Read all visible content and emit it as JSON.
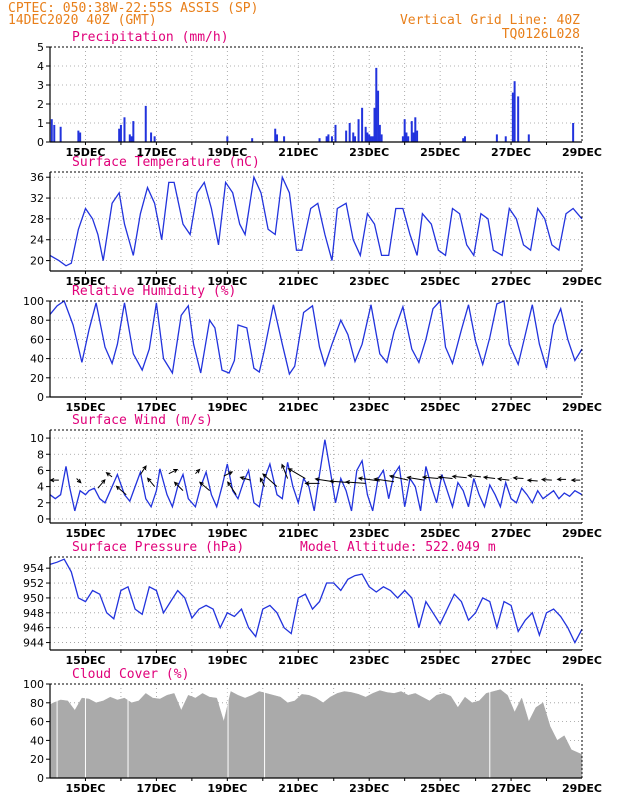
{
  "header": {
    "line1_left": "CPTEC:  050:38W-22:55S  ASSIS (SP)",
    "line2_left": "14DEC2020 40Z (GMT)",
    "line1_right": "Vertical Grid Line: 40Z",
    "line2_right": "TQ0126L028",
    "model_altitude": "Model Altitude: 522.049 m"
  },
  "colors": {
    "header": "#e87f1a",
    "title": "#e0007a",
    "series": "#2233dd",
    "cloud": "#aaaaaa",
    "arrow": "#000000"
  },
  "x_axis": {
    "labels": [
      "15DEC",
      "17DEC",
      "19DEC",
      "21DEC",
      "23DEC",
      "25DEC",
      "27DEC",
      "29DEC"
    ],
    "label_days": [
      1,
      3,
      5,
      7,
      9,
      11,
      13,
      15
    ],
    "grid_days": [
      1,
      2,
      3,
      4,
      5,
      6,
      7,
      8,
      9,
      10,
      11,
      12,
      13,
      14
    ]
  },
  "chart_data": [
    {
      "type": "bar",
      "title": "Precipitation (mm/h)",
      "ylim": [
        0,
        5
      ],
      "yticks": [
        "0",
        "1",
        "2",
        "3",
        "4",
        "5"
      ],
      "xlim_days": [
        0,
        15
      ],
      "x": [
        0.05,
        0.12,
        0.3,
        0.8,
        0.85,
        1.95,
        2.0,
        2.1,
        2.25,
        2.35,
        2.3,
        2.7,
        2.85,
        2.95,
        5.0,
        5.7,
        6.35,
        6.4,
        6.6,
        7.6,
        7.8,
        7.85,
        7.95,
        8.05,
        8.35,
        8.45,
        8.55,
        8.6,
        8.7,
        8.8,
        8.9,
        8.95,
        9.0,
        9.05,
        9.1,
        9.15,
        9.2,
        9.25,
        9.3,
        9.35,
        9.95,
        10.0,
        10.05,
        10.1,
        10.2,
        10.25,
        10.3,
        10.35,
        11.65,
        11.7,
        12.6,
        12.85,
        13.05,
        13.1,
        13.2,
        13.5,
        14.75
      ],
      "values": [
        1.2,
        0.9,
        0.8,
        0.6,
        0.5,
        0.7,
        0.9,
        1.3,
        0.4,
        1.1,
        0.3,
        1.9,
        0.5,
        0.3,
        0.3,
        0.2,
        0.7,
        0.4,
        0.3,
        0.2,
        0.3,
        0.4,
        0.3,
        0.9,
        0.6,
        1.0,
        0.5,
        0.3,
        1.2,
        1.8,
        0.8,
        0.5,
        0.4,
        0.3,
        0.3,
        1.8,
        3.9,
        2.7,
        0.9,
        0.4,
        0.3,
        1.2,
        0.5,
        0.3,
        1.1,
        0.5,
        1.3,
        0.6,
        0.2,
        0.3,
        0.4,
        0.3,
        2.6,
        3.2,
        2.4,
        0.4,
        1.0
      ]
    },
    {
      "type": "line",
      "title": "Surface Temperature (nC)",
      "ylim": [
        18,
        37
      ],
      "yticks": [
        "20",
        "24",
        "28",
        "32",
        "36"
      ],
      "ytick_values": [
        20,
        24,
        28,
        32,
        36
      ],
      "x": [
        0.0,
        0.25,
        0.45,
        0.6,
        0.8,
        1.0,
        1.2,
        1.35,
        1.5,
        1.75,
        1.95,
        2.1,
        2.35,
        2.55,
        2.75,
        2.95,
        3.15,
        3.35,
        3.5,
        3.75,
        3.95,
        4.15,
        4.35,
        4.55,
        4.75,
        4.95,
        5.15,
        5.35,
        5.5,
        5.75,
        5.95,
        6.15,
        6.35,
        6.55,
        6.75,
        6.95,
        7.1,
        7.35,
        7.55,
        7.75,
        7.95,
        8.1,
        8.35,
        8.55,
        8.75,
        8.95,
        9.15,
        9.35,
        9.55,
        9.75,
        9.95,
        10.15,
        10.35,
        10.5,
        10.75,
        10.95,
        11.15,
        11.35,
        11.55,
        11.75,
        11.95,
        12.15,
        12.35,
        12.5,
        12.75,
        12.95,
        13.15,
        13.35,
        13.55,
        13.75,
        13.95,
        14.15,
        14.35,
        14.55,
        14.75,
        15.0
      ],
      "values": [
        21,
        20,
        19,
        19.5,
        26,
        30,
        28,
        25,
        20,
        31,
        33,
        27,
        21,
        29,
        34,
        31,
        24,
        35,
        35,
        27,
        25,
        33,
        35,
        30,
        23,
        35,
        33,
        27,
        25,
        36,
        33,
        26,
        25,
        36,
        33,
        22,
        22,
        30,
        31,
        25,
        20,
        30,
        31,
        24,
        21,
        29,
        27,
        21,
        21,
        30,
        30,
        25,
        21,
        29,
        27,
        22,
        21,
        30,
        29,
        23,
        21,
        29,
        28,
        22,
        21,
        30,
        28,
        23,
        22,
        30,
        28,
        23,
        22,
        29,
        30,
        28
      ]
    },
    {
      "type": "line",
      "title": "Relative Humidity (%)",
      "ylim": [
        0,
        100
      ],
      "yticks": [
        "0",
        "20",
        "40",
        "60",
        "80",
        "100"
      ],
      "ytick_values": [
        0,
        20,
        40,
        60,
        80,
        100
      ],
      "x": [
        0.0,
        0.2,
        0.4,
        0.65,
        0.9,
        1.1,
        1.3,
        1.55,
        1.75,
        1.9,
        2.1,
        2.35,
        2.6,
        2.8,
        3.0,
        3.2,
        3.45,
        3.7,
        3.9,
        4.05,
        4.25,
        4.5,
        4.65,
        4.85,
        5.05,
        5.2,
        5.3,
        5.55,
        5.75,
        5.9,
        6.05,
        6.3,
        6.55,
        6.75,
        6.9,
        7.15,
        7.4,
        7.6,
        7.75,
        7.95,
        8.2,
        8.4,
        8.6,
        8.8,
        9.05,
        9.3,
        9.5,
        9.7,
        9.95,
        10.2,
        10.4,
        10.6,
        10.8,
        11.0,
        11.15,
        11.35,
        11.6,
        11.8,
        12.0,
        12.2,
        12.4,
        12.6,
        12.8,
        12.95,
        13.2,
        13.4,
        13.6,
        13.8,
        14.0,
        14.2,
        14.4,
        14.6,
        14.8,
        15.0
      ],
      "values": [
        86,
        95,
        100,
        75,
        36,
        70,
        98,
        52,
        35,
        55,
        98,
        45,
        28,
        50,
        98,
        40,
        25,
        85,
        95,
        55,
        25,
        80,
        72,
        28,
        25,
        38,
        75,
        72,
        30,
        26,
        50,
        96,
        55,
        24,
        32,
        88,
        95,
        52,
        33,
        55,
        80,
        65,
        37,
        55,
        96,
        45,
        36,
        68,
        94,
        50,
        36,
        60,
        92,
        100,
        52,
        35,
        70,
        96,
        58,
        34,
        62,
        97,
        100,
        55,
        34,
        65,
        96,
        55,
        30,
        75,
        92,
        60,
        38,
        50
      ]
    },
    {
      "type": "line",
      "title": "Surface Wind (m/s)",
      "ylim": [
        -0.5,
        11
      ],
      "yticks": [
        "0",
        "2",
        "4",
        "6",
        "8",
        "10"
      ],
      "ytick_values": [
        0,
        2,
        4,
        6,
        8,
        10
      ],
      "x": [
        0.0,
        0.15,
        0.3,
        0.45,
        0.55,
        0.7,
        0.85,
        1.0,
        1.1,
        1.25,
        1.4,
        1.55,
        1.7,
        1.9,
        2.1,
        2.25,
        2.4,
        2.55,
        2.7,
        2.85,
        3.0,
        3.1,
        3.3,
        3.45,
        3.6,
        3.75,
        3.9,
        4.1,
        4.25,
        4.4,
        4.55,
        4.7,
        4.85,
        5.0,
        5.15,
        5.3,
        5.45,
        5.6,
        5.75,
        5.9,
        6.05,
        6.2,
        6.4,
        6.55,
        6.7,
        6.85,
        7.0,
        7.15,
        7.3,
        7.45,
        7.6,
        7.75,
        7.9,
        8.05,
        8.2,
        8.35,
        8.5,
        8.65,
        8.8,
        8.95,
        9.1,
        9.25,
        9.4,
        9.55,
        9.7,
        9.85,
        10.0,
        10.15,
        10.3,
        10.45,
        10.6,
        10.75,
        10.9,
        11.05,
        11.2,
        11.35,
        11.5,
        11.65,
        11.8,
        11.95,
        12.1,
        12.25,
        12.4,
        12.55,
        12.7,
        12.85,
        13.0,
        13.15,
        13.3,
        13.45,
        13.6,
        13.75,
        13.9,
        14.05,
        14.2,
        14.35,
        14.5,
        14.65,
        14.8,
        15.0
      ],
      "values": [
        3,
        2.5,
        3,
        6.5,
        4,
        1,
        3.5,
        3,
        3.5,
        3.8,
        2.5,
        2,
        3.5,
        5.5,
        3,
        2.2,
        4,
        5.8,
        2.5,
        1.5,
        3.5,
        6.2,
        3,
        1.5,
        4,
        5.5,
        2.5,
        1.5,
        4,
        5.8,
        3,
        1.5,
        4,
        6.8,
        3.5,
        2.5,
        4.5,
        6,
        2,
        1.5,
        5,
        6.8,
        3,
        2.5,
        7,
        4,
        2,
        5,
        4,
        1,
        5.5,
        9.8,
        6,
        2,
        5,
        3.5,
        1,
        6,
        7.2,
        3,
        1,
        5,
        6,
        2.5,
        5.5,
        6.5,
        1.5,
        5,
        4,
        1,
        6.5,
        4,
        2,
        5.5,
        3.5,
        1.5,
        4.5,
        3.5,
        1.5,
        5,
        3,
        1.5,
        4.2,
        3,
        1.5,
        4.5,
        2.5,
        2,
        3.8,
        3,
        2,
        3.5,
        2.5,
        3,
        3.5,
        2.5,
        3.2,
        2.8,
        3.5,
        3
      ],
      "vectors": {
        "x": [
          0.25,
          0.75,
          1.35,
          1.75,
          2.15,
          2.55,
          2.95,
          3.35,
          3.75,
          4.1,
          4.5,
          4.9,
          5.25,
          5.65,
          6.05,
          6.4,
          6.7,
          7.2,
          7.6,
          8.0,
          8.45,
          8.9,
          9.3,
          9.7,
          10.1,
          10.55,
          10.95,
          11.35,
          11.75,
          12.15,
          12.55,
          12.95,
          13.35,
          13.75,
          14.15,
          14.55,
          14.95
        ],
        "y": [
          4.8,
          5,
          3.8,
          5.2,
          3,
          5.5,
          4,
          5.6,
          3.5,
          5.6,
          3.5,
          5.3,
          3,
          4.8,
          4,
          4,
          5,
          5,
          4.4,
          4.6,
          4.5,
          4.4,
          4.7,
          4.6,
          4.8,
          4.8,
          5,
          5,
          5.1,
          5.2,
          5,
          4.8,
          5,
          4.7,
          4.8,
          4.9,
          4.8
        ],
        "u": [
          -0.6,
          0.3,
          0.5,
          -0.4,
          -0.7,
          0.4,
          -0.5,
          0.6,
          -0.6,
          0.3,
          -0.7,
          0.6,
          -0.6,
          -0.7,
          -0.3,
          -1.0,
          -0.4,
          -1.2,
          -1.0,
          -1.3,
          -1.4,
          -1.4,
          -1.5,
          -1.4,
          -1.3,
          -1.2,
          -1.1,
          -1.0,
          -1.0,
          -0.9,
          -0.8,
          -0.8,
          -0.7,
          -0.7,
          -0.7,
          -0.6,
          -0.6
        ],
        "v": [
          0.0,
          -0.3,
          0.6,
          0.3,
          0.6,
          0.6,
          0.6,
          0.3,
          0.6,
          0.3,
          0.6,
          0.3,
          0.9,
          0.2,
          0.6,
          0.9,
          1.0,
          0.7,
          0.0,
          0.2,
          0.1,
          0.1,
          0.2,
          0.2,
          0.3,
          0.2,
          0.1,
          0.1,
          0.1,
          0.1,
          0.1,
          0.1,
          0.05,
          0.05,
          0.05,
          0.0,
          0.0
        ]
      }
    },
    {
      "type": "line",
      "title": "Surface Pressure (hPa)",
      "ylim": [
        943,
        955.5
      ],
      "yticks": [
        "944",
        "946",
        "948",
        "950",
        "952",
        "954"
      ],
      "ytick_values": [
        944,
        946,
        948,
        950,
        952,
        954
      ],
      "x": [
        0.0,
        0.2,
        0.4,
        0.6,
        0.8,
        1.0,
        1.2,
        1.4,
        1.6,
        1.8,
        2.0,
        2.2,
        2.4,
        2.6,
        2.8,
        3.0,
        3.2,
        3.4,
        3.6,
        3.8,
        4.0,
        4.2,
        4.4,
        4.6,
        4.8,
        5.0,
        5.2,
        5.4,
        5.6,
        5.8,
        6.0,
        6.2,
        6.4,
        6.6,
        6.8,
        7.0,
        7.2,
        7.4,
        7.6,
        7.8,
        8.0,
        8.2,
        8.4,
        8.6,
        8.8,
        9.0,
        9.2,
        9.4,
        9.6,
        9.8,
        10.0,
        10.2,
        10.4,
        10.6,
        10.8,
        11.0,
        11.2,
        11.4,
        11.6,
        11.8,
        12.0,
        12.2,
        12.4,
        12.6,
        12.8,
        13.0,
        13.2,
        13.4,
        13.6,
        13.8,
        14.0,
        14.2,
        14.4,
        14.6,
        14.8,
        15.0
      ],
      "values": [
        954.5,
        954.8,
        955.2,
        953.5,
        950,
        949.5,
        951,
        950.5,
        948,
        947.2,
        951,
        951.5,
        948.5,
        947.8,
        951.5,
        951,
        948,
        949.5,
        951,
        950,
        947.3,
        948.5,
        949,
        948.5,
        946,
        948,
        947.5,
        948.5,
        946,
        944.8,
        948.5,
        949,
        948,
        946,
        945.2,
        950,
        950.5,
        948.5,
        949.5,
        952,
        952,
        951,
        952.5,
        953,
        953.2,
        951.5,
        950.8,
        951.5,
        951,
        950,
        951,
        950,
        946,
        949.5,
        948,
        946.5,
        948.5,
        950.5,
        949.5,
        947,
        948,
        950,
        949.5,
        946,
        949.5,
        949,
        945.5,
        947,
        948,
        945,
        948,
        948.5,
        947.5,
        946,
        944,
        945.8
      ]
    },
    {
      "type": "area",
      "title": "Cloud Cover (%)",
      "ylim": [
        0,
        100
      ],
      "yticks": [
        "0",
        "20",
        "40",
        "60",
        "80",
        "100"
      ],
      "ytick_values": [
        0,
        20,
        40,
        60,
        80,
        100
      ],
      "x": [
        0.0,
        0.1,
        0.3,
        0.5,
        0.7,
        0.9,
        1.1,
        1.3,
        1.5,
        1.7,
        1.9,
        2.1,
        2.3,
        2.5,
        2.7,
        2.9,
        3.1,
        3.3,
        3.5,
        3.7,
        3.9,
        4.1,
        4.3,
        4.5,
        4.7,
        4.9,
        5.1,
        5.3,
        5.5,
        5.7,
        5.9,
        6.1,
        6.3,
        6.5,
        6.7,
        6.9,
        7.1,
        7.3,
        7.5,
        7.7,
        7.9,
        8.1,
        8.3,
        8.5,
        8.7,
        8.9,
        9.1,
        9.3,
        9.5,
        9.7,
        9.9,
        10.1,
        10.3,
        10.5,
        10.7,
        10.9,
        11.1,
        11.3,
        11.5,
        11.7,
        11.9,
        12.1,
        12.3,
        12.5,
        12.7,
        12.9,
        13.1,
        13.3,
        13.5,
        13.7,
        13.9,
        14.1,
        14.3,
        14.5,
        14.7,
        15.0
      ],
      "values": [
        78,
        80,
        83,
        82,
        72,
        85,
        84,
        80,
        82,
        86,
        83,
        85,
        80,
        82,
        90,
        85,
        84,
        88,
        90,
        72,
        88,
        85,
        90,
        86,
        85,
        60,
        92,
        88,
        85,
        88,
        92,
        90,
        88,
        86,
        80,
        82,
        89,
        88,
        85,
        80,
        86,
        90,
        92,
        91,
        89,
        86,
        90,
        93,
        91,
        90,
        92,
        88,
        90,
        86,
        82,
        88,
        90,
        87,
        75,
        86,
        80,
        82,
        90,
        92,
        94,
        88,
        70,
        85,
        60,
        75,
        80,
        55,
        40,
        45,
        30,
        25
      ]
    }
  ]
}
